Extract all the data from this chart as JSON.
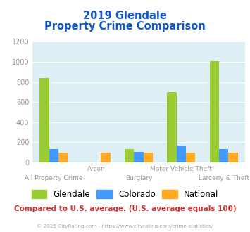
{
  "title_line1": "2019 Glendale",
  "title_line2": "Property Crime Comparison",
  "categories": [
    "All Property Crime",
    "Arson",
    "Burglary",
    "Motor Vehicle Theft",
    "Larceny & Theft"
  ],
  "glendale": [
    840,
    0,
    130,
    700,
    1010
  ],
  "colorado": [
    130,
    0,
    105,
    170,
    130
  ],
  "national": [
    100,
    100,
    100,
    100,
    100
  ],
  "arson_national": 100,
  "glendale_color": "#99cc33",
  "colorado_color": "#4499ff",
  "national_color": "#ffaa22",
  "bg_color": "#ddeef4",
  "title_color": "#1155cc",
  "axis_label_color": "#999999",
  "ylabel_max": 1200,
  "yticks": [
    0,
    200,
    400,
    600,
    800,
    1000,
    1200
  ],
  "footnote": "Compared to U.S. average. (U.S. average equals 100)",
  "copyright": "© 2025 CityRating.com - https://www.cityrating.com/crime-statistics/",
  "footnote_color": "#cc3333",
  "copyright_color": "#aaaaaa",
  "bar_width": 0.22
}
